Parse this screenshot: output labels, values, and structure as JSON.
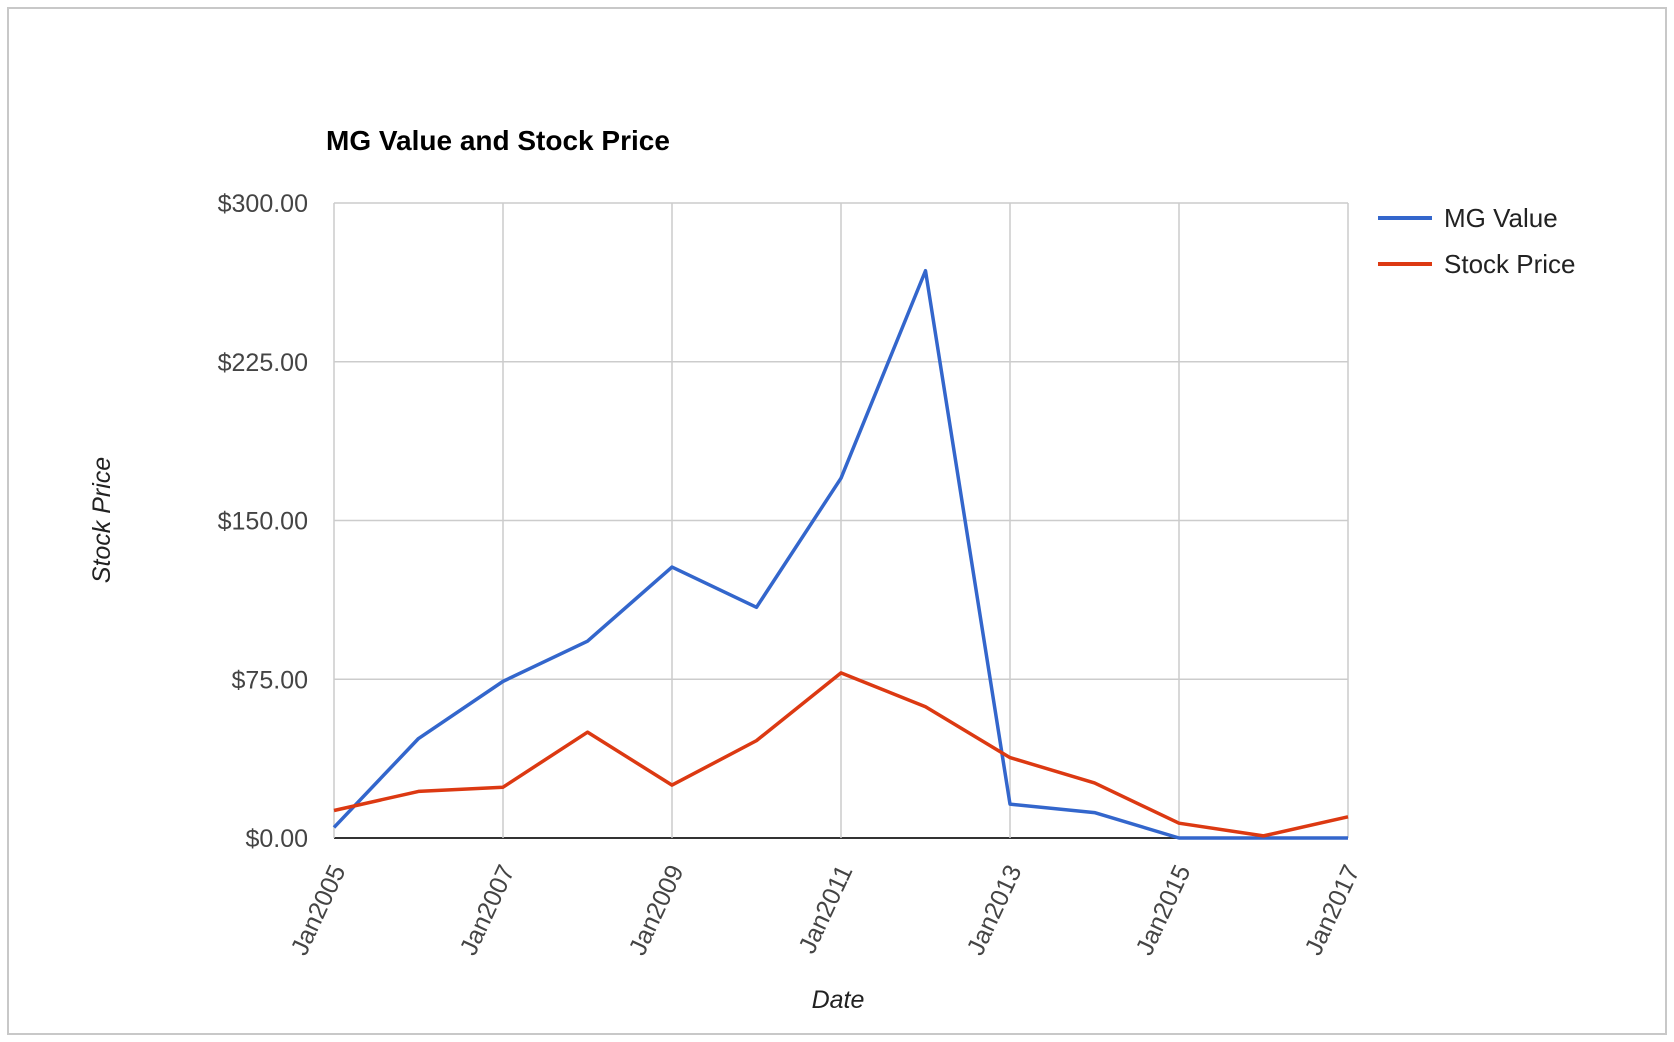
{
  "chart_data": {
    "type": "line",
    "title": "MG Value and Stock Price",
    "xlabel": "Date",
    "ylabel": "Stock Price",
    "ylim": [
      0,
      300
    ],
    "yticks": [
      {
        "value": 0,
        "label": "$0.00"
      },
      {
        "value": 75,
        "label": "$75.00"
      },
      {
        "value": 150,
        "label": "$150.00"
      },
      {
        "value": 225,
        "label": "$225.00"
      },
      {
        "value": 300,
        "label": "$300.00"
      }
    ],
    "xticks": [
      "Jan2005",
      "Jan2007",
      "Jan2009",
      "Jan2011",
      "Jan2013",
      "Jan2015",
      "Jan2017"
    ],
    "x": [
      "Jan2005",
      "Jan2006",
      "Jan2007",
      "Jan2008",
      "Jan2009",
      "Jan2010",
      "Jan2011",
      "Jan2012",
      "Jan2013",
      "Jan2014",
      "Jan2015",
      "Jan2016",
      "Jan2017"
    ],
    "grid": true,
    "legend_position": "right",
    "series": [
      {
        "name": "MG Value",
        "color": "#3366cc",
        "values": [
          5,
          47,
          74,
          93,
          128,
          109,
          170,
          268,
          16,
          12,
          0,
          0,
          0
        ]
      },
      {
        "name": "Stock Price",
        "color": "#dc3912",
        "values": [
          13,
          22,
          24,
          50,
          25,
          46,
          78,
          62,
          38,
          26,
          7,
          1,
          10
        ]
      }
    ]
  }
}
